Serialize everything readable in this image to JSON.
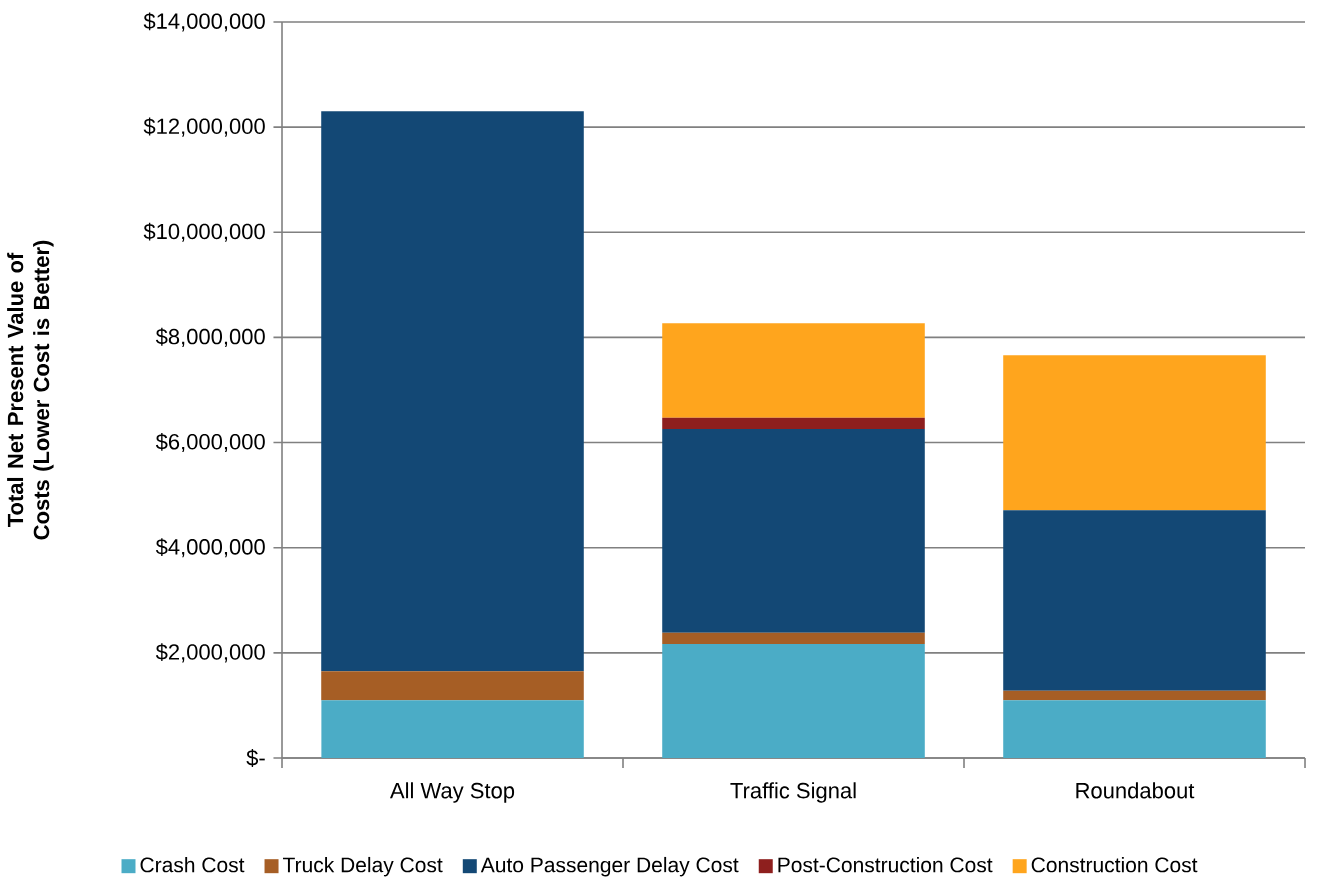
{
  "chart_data": {
    "type": "bar",
    "stacked": true,
    "ylabel": "Total Net Present Value of Costs (Lower Cost is Better)",
    "categories": [
      "All Way Stop",
      "Traffic Signal",
      "Roundabout"
    ],
    "series": [
      {
        "name": "Crash Cost",
        "color": "#4bacc6",
        "values": [
          1100000,
          2170000,
          1100000
        ]
      },
      {
        "name": "Truck Delay Cost",
        "color": "#a65e25",
        "values": [
          550000,
          210000,
          180000
        ]
      },
      {
        "name": "Auto Passenger Delay Cost",
        "color": "#134875",
        "values": [
          10650000,
          3880000,
          3430000
        ]
      },
      {
        "name": "Post-Construction Cost",
        "color": "#8e1f1e",
        "values": [
          0,
          210000,
          0
        ]
      },
      {
        "name": "Construction Cost",
        "color": "#ffa51d",
        "values": [
          0,
          1800000,
          2950000
        ]
      }
    ],
    "ylim": [
      0,
      14000000
    ],
    "yticks": [
      {
        "value": 0,
        "label": "$-"
      },
      {
        "value": 2000000,
        "label": "$2,000,000"
      },
      {
        "value": 4000000,
        "label": "$4,000,000"
      },
      {
        "value": 6000000,
        "label": "$6,000,000"
      },
      {
        "value": 8000000,
        "label": "$8,000,000"
      },
      {
        "value": 10000000,
        "label": "$10,000,000"
      },
      {
        "value": 12000000,
        "label": "$12,000,000"
      },
      {
        "value": 14000000,
        "label": "$14,000,000"
      }
    ],
    "grid": "y",
    "legend": "bottom"
  }
}
